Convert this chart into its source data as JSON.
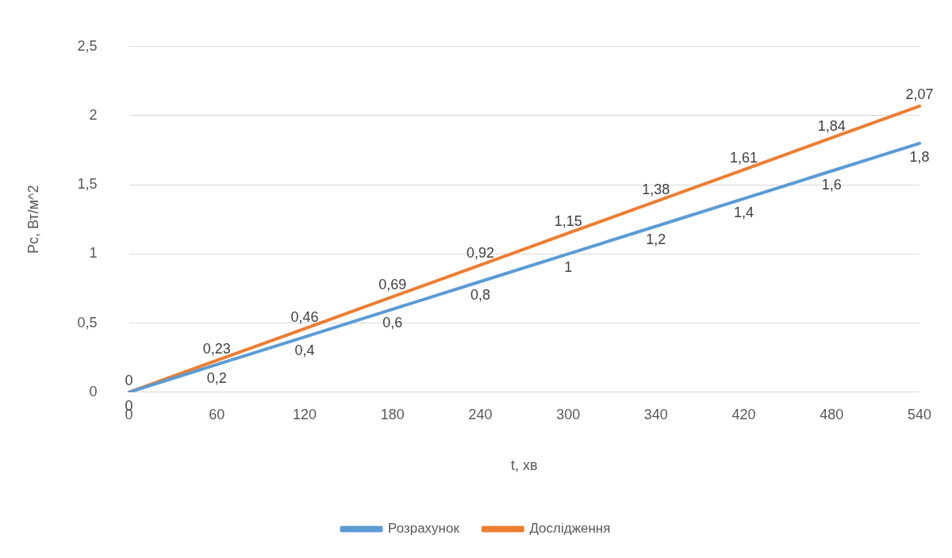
{
  "chart_data": {
    "type": "line",
    "xlabel": "t, хв",
    "ylabel": "Pc, Вт/м^2",
    "categories": [
      "0",
      "60",
      "120",
      "180",
      "240",
      "300",
      "340",
      "420",
      "480",
      "540"
    ],
    "series": [
      {
        "name": "Розрахунок",
        "color": "#5b9bd5",
        "values": [
          0,
          0.2,
          0.4,
          0.6,
          0.8,
          1,
          1.2,
          1.4,
          1.6,
          1.8
        ],
        "value_labels": [
          "0",
          "0,2",
          "0,4",
          "0,6",
          "0,8",
          "1",
          "1,2",
          "1,4",
          "1,6",
          "1,8"
        ]
      },
      {
        "name": "Дослідження",
        "color": "#ed7d31",
        "values": [
          0,
          0.23,
          0.46,
          0.69,
          0.92,
          1.15,
          1.38,
          1.61,
          1.84,
          2.07
        ],
        "value_labels": [
          "0",
          "0,23",
          "0,46",
          "0,69",
          "0,92",
          "1,15",
          "1,38",
          "1,61",
          "1,84",
          "2,07"
        ]
      }
    ],
    "ylim": [
      0,
      2.5
    ],
    "yticks": [
      0,
      {
        "value": 0.5,
        "label": "0,5"
      },
      1,
      {
        "value": 1.5,
        "label": "1,5"
      },
      2,
      {
        "value": 2.5,
        "label": "2,5"
      }
    ],
    "grid": "y",
    "legend": "bottom",
    "marker": "none",
    "line_style": "solid"
  }
}
